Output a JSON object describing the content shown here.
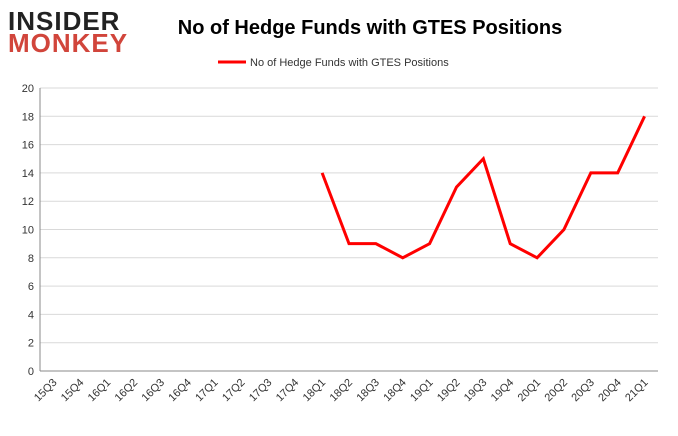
{
  "logo": {
    "line1": "INSIDER",
    "line2": "MONKEY"
  },
  "chart_data": {
    "type": "line",
    "title": "No of Hedge Funds with GTES Positions",
    "categories": [
      "15Q3",
      "15Q4",
      "16Q1",
      "16Q2",
      "16Q3",
      "16Q4",
      "17Q1",
      "17Q2",
      "17Q3",
      "17Q4",
      "18Q1",
      "18Q2",
      "18Q3",
      "18Q4",
      "19Q1",
      "19Q2",
      "19Q3",
      "19Q4",
      "20Q1",
      "20Q2",
      "20Q3",
      "20Q4",
      "21Q1"
    ],
    "series": [
      {
        "name": "No of Hedge Funds with GTES Positions",
        "color": "#ff0000",
        "values": [
          null,
          null,
          null,
          null,
          null,
          null,
          null,
          null,
          null,
          null,
          14,
          9,
          9,
          8,
          9,
          13,
          15,
          9,
          8,
          10,
          14,
          14,
          18
        ]
      }
    ],
    "ylim": [
      0,
      20
    ],
    "yticks": [
      0,
      2,
      4,
      6,
      8,
      10,
      12,
      14,
      16,
      18,
      20
    ],
    "grid": true,
    "legend": "top"
  }
}
